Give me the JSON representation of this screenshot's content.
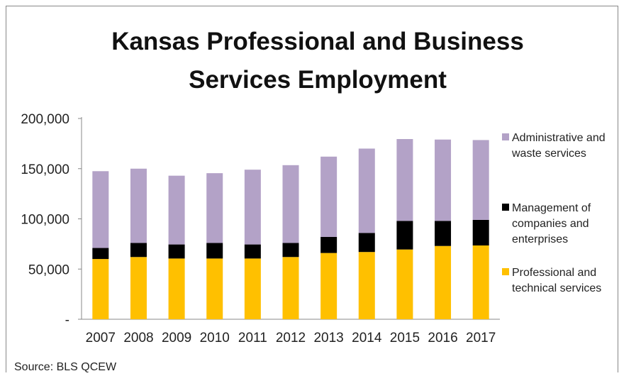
{
  "chart_data": {
    "type": "bar",
    "stacked": true,
    "title_lines": [
      "Kansas Professional and Business",
      "Services Employment"
    ],
    "source": "Source: BLS QCEW",
    "categories": [
      "2007",
      "2008",
      "2009",
      "2010",
      "2011",
      "2012",
      "2013",
      "2014",
      "2015",
      "2016",
      "2017"
    ],
    "ylim": [
      0,
      200000
    ],
    "yticks": [
      0,
      50000,
      100000,
      150000,
      200000
    ],
    "ytick_labels": [
      "-",
      "50,000",
      "100,000",
      "150,000",
      "200,000"
    ],
    "grid": false,
    "legend_position": "right",
    "series": [
      {
        "name": "Professional and technical services",
        "legend_lines": [
          "Professional and",
          "technical services"
        ],
        "color": "#ffc000",
        "values": [
          60000,
          62000,
          60500,
          60500,
          60500,
          62000,
          66000,
          67000,
          69500,
          73000,
          73500
        ]
      },
      {
        "name": "Management of companies and enterprises",
        "legend_lines": [
          "Management of",
          "companies and",
          "enterprises"
        ],
        "color": "#000000",
        "values": [
          11000,
          14000,
          14000,
          15500,
          14000,
          14000,
          16000,
          19000,
          28500,
          25000,
          25500
        ]
      },
      {
        "name": "Administrative and waste services",
        "legend_lines": [
          "Administrative and",
          "waste services"
        ],
        "color": "#b3a2c7",
        "values": [
          76500,
          74000,
          68500,
          69500,
          74500,
          77500,
          80000,
          84000,
          81500,
          81000,
          79500
        ]
      }
    ],
    "legend_order": [
      2,
      1,
      0
    ]
  }
}
